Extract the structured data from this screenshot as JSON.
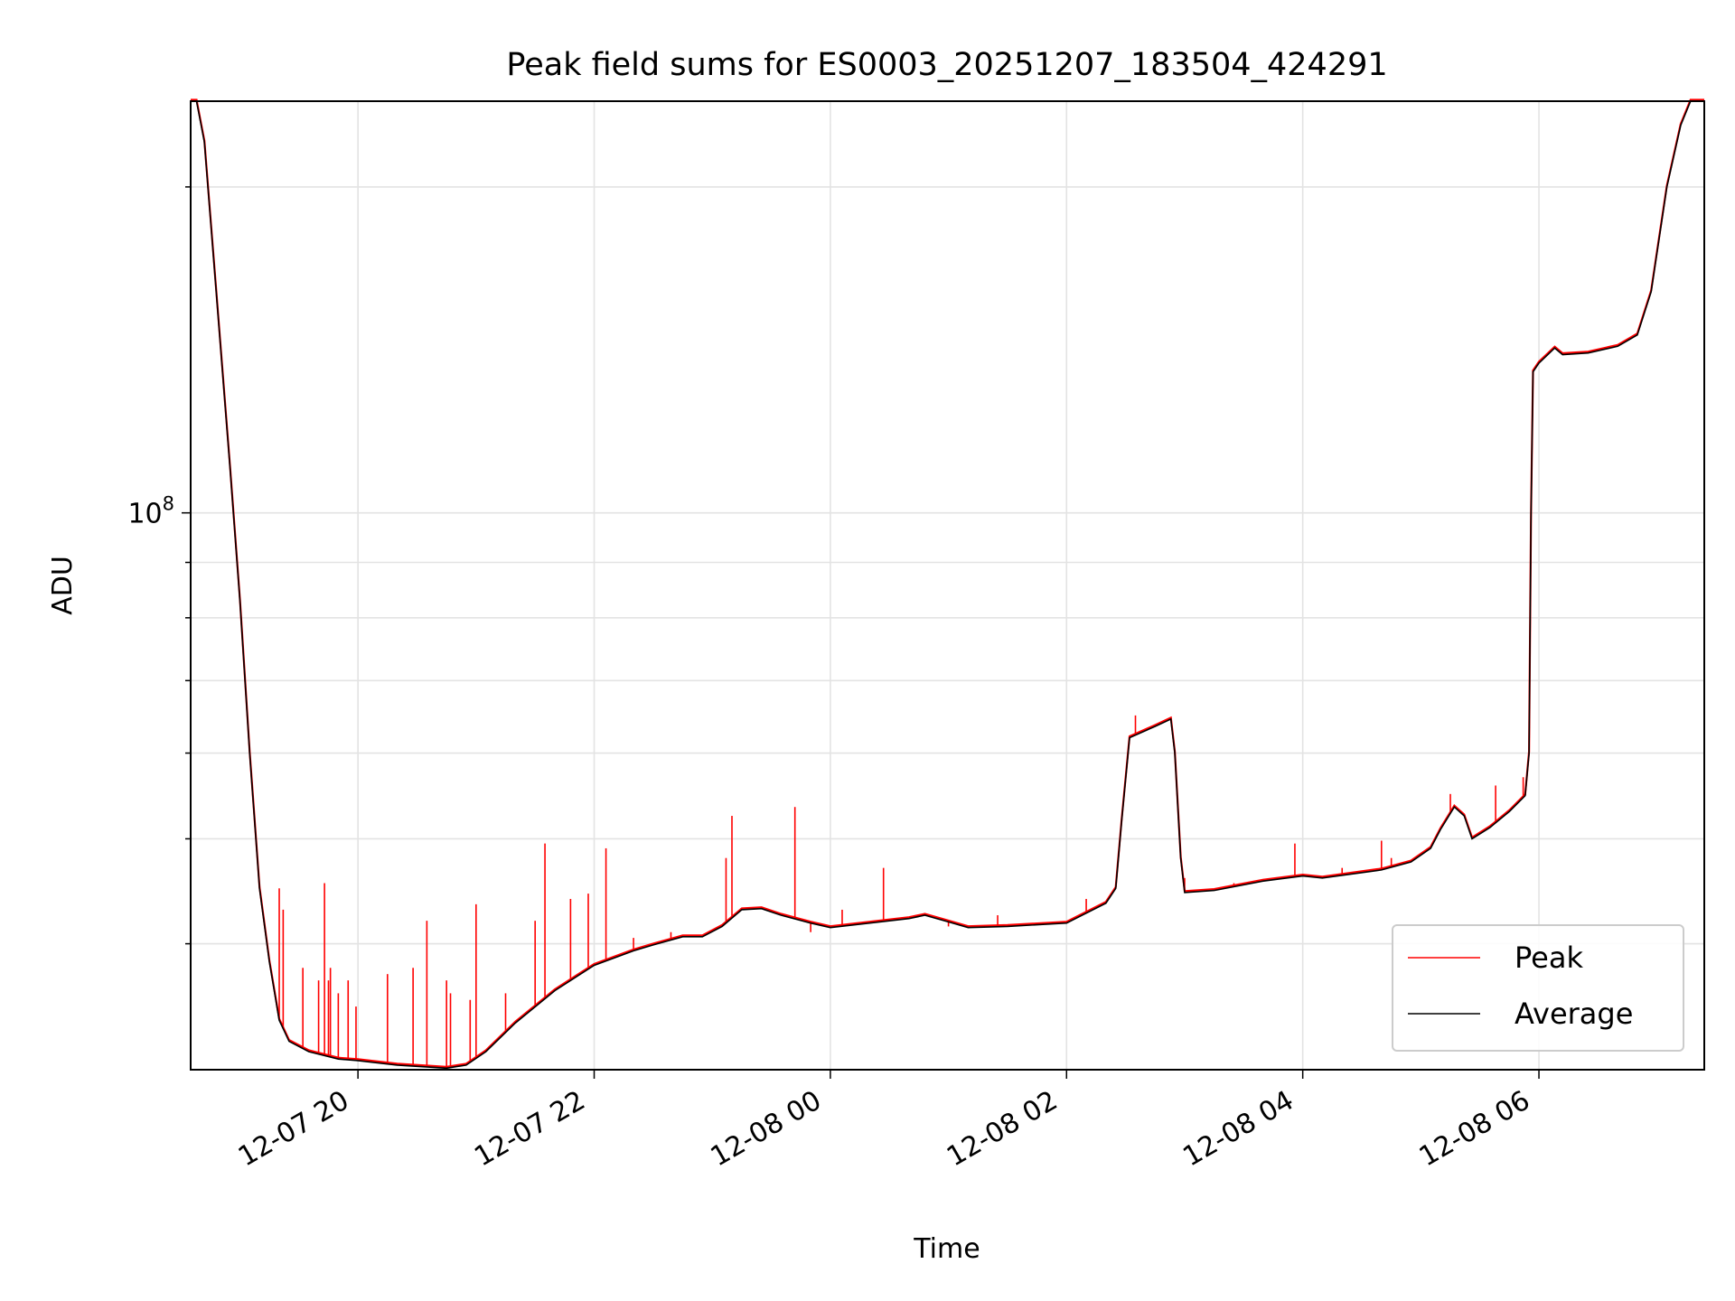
{
  "chart_data": {
    "type": "line",
    "title": "Peak field sums for ES0003_20251207_183504_424291",
    "xlabel": "Time",
    "ylabel": "ADU",
    "y_scale": "log",
    "ylim": [
      30600000,
      240000000
    ],
    "xlim": [
      "2025-12-07 18:35",
      "2025-12-08 07:24"
    ],
    "grid": true,
    "legend_position": "lower-right",
    "x_ticks": [
      {
        "t": "2025-12-07 20:00",
        "label": "12-07 20"
      },
      {
        "t": "2025-12-07 22:00",
        "label": "12-07 22"
      },
      {
        "t": "2025-12-08 00:00",
        "label": "12-08 00"
      },
      {
        "t": "2025-12-08 02:00",
        "label": "12-08 02"
      },
      {
        "t": "2025-12-08 04:00",
        "label": "12-08 04"
      },
      {
        "t": "2025-12-08 06:00",
        "label": "12-08 06"
      }
    ],
    "y_major_ticks": [
      {
        "v": 100000000,
        "base": "10",
        "exp": "8"
      }
    ],
    "y_minor_ticks": [
      40000000,
      50000000,
      60000000,
      70000000,
      80000000,
      90000000,
      200000000
    ],
    "series": [
      {
        "name": "Peak",
        "color": "#ff0000",
        "spikes": [
          [
            "2025-12-07 19:20",
            45000000
          ],
          [
            "2025-12-07 19:22",
            43000000
          ],
          [
            "2025-12-07 19:32",
            38000000
          ],
          [
            "2025-12-07 19:40",
            37000000
          ],
          [
            "2025-12-07 19:43",
            45500000
          ],
          [
            "2025-12-07 19:45",
            37000000
          ],
          [
            "2025-12-07 19:46",
            38000000
          ],
          [
            "2025-12-07 19:50",
            36000000
          ],
          [
            "2025-12-07 19:55",
            37000000
          ],
          [
            "2025-12-07 19:59",
            35000000
          ],
          [
            "2025-12-07 20:15",
            37500000
          ],
          [
            "2025-12-07 20:28",
            38000000
          ],
          [
            "2025-12-07 20:35",
            42000000
          ],
          [
            "2025-12-07 20:45",
            37000000
          ],
          [
            "2025-12-07 20:47",
            36000000
          ],
          [
            "2025-12-07 20:57",
            35500000
          ],
          [
            "2025-12-07 21:00",
            43500000
          ],
          [
            "2025-12-07 21:15",
            36000000
          ],
          [
            "2025-12-07 21:30",
            42000000
          ],
          [
            "2025-12-07 21:35",
            49500000
          ],
          [
            "2025-12-07 21:48",
            44000000
          ],
          [
            "2025-12-07 21:57",
            44500000
          ],
          [
            "2025-12-07 22:06",
            49000000
          ],
          [
            "2025-12-07 22:20",
            40500000
          ],
          [
            "2025-12-07 22:39",
            41000000
          ],
          [
            "2025-12-07 23:07",
            48000000
          ],
          [
            "2025-12-07 23:10",
            52500000
          ],
          [
            "2025-12-07 23:42",
            53500000
          ],
          [
            "2025-12-07 23:50",
            41000000
          ],
          [
            "2025-12-08 00:06",
            43000000
          ],
          [
            "2025-12-08 00:27",
            47000000
          ],
          [
            "2025-12-08 00:45",
            42500000
          ],
          [
            "2025-12-08 01:00",
            41500000
          ],
          [
            "2025-12-08 01:25",
            42500000
          ],
          [
            "2025-12-08 02:10",
            44000000
          ],
          [
            "2025-12-08 02:35",
            65000000
          ],
          [
            "2025-12-08 03:00",
            46000000
          ],
          [
            "2025-12-08 03:25",
            45500000
          ],
          [
            "2025-12-08 03:56",
            49500000
          ],
          [
            "2025-12-08 04:20",
            47000000
          ],
          [
            "2025-12-08 04:40",
            49800000
          ],
          [
            "2025-12-08 04:45",
            48000000
          ],
          [
            "2025-12-08 05:15",
            55000000
          ],
          [
            "2025-12-08 05:38",
            56000000
          ],
          [
            "2025-12-08 05:52",
            57000000
          ]
        ]
      },
      {
        "name": "Average",
        "color": "#000000",
        "points": [
          [
            "2025-12-07 18:35",
            240000000
          ],
          [
            "2025-12-07 18:38",
            240000000
          ],
          [
            "2025-12-07 18:42",
            220000000
          ],
          [
            "2025-12-07 18:48",
            160000000
          ],
          [
            "2025-12-07 18:55",
            110000000
          ],
          [
            "2025-12-07 19:00",
            83000000
          ],
          [
            "2025-12-07 19:05",
            60000000
          ],
          [
            "2025-12-07 19:10",
            45000000
          ],
          [
            "2025-12-07 19:15",
            38500000
          ],
          [
            "2025-12-07 19:20",
            34000000
          ],
          [
            "2025-12-07 19:25",
            32500000
          ],
          [
            "2025-12-07 19:35",
            31800000
          ],
          [
            "2025-12-07 19:50",
            31300000
          ],
          [
            "2025-12-07 20:00",
            31200000
          ],
          [
            "2025-12-07 20:20",
            30900000
          ],
          [
            "2025-12-07 20:45",
            30700000
          ],
          [
            "2025-12-07 20:55",
            30900000
          ],
          [
            "2025-12-07 21:05",
            31800000
          ],
          [
            "2025-12-07 21:20",
            33800000
          ],
          [
            "2025-12-07 21:40",
            36200000
          ],
          [
            "2025-12-07 22:00",
            38200000
          ],
          [
            "2025-12-07 22:20",
            39400000
          ],
          [
            "2025-12-07 22:30",
            39900000
          ],
          [
            "2025-12-07 22:45",
            40600000
          ],
          [
            "2025-12-07 22:55",
            40600000
          ],
          [
            "2025-12-07 23:05",
            41500000
          ],
          [
            "2025-12-07 23:15",
            43000000
          ],
          [
            "2025-12-07 23:25",
            43100000
          ],
          [
            "2025-12-07 23:35",
            42500000
          ],
          [
            "2025-12-07 23:50",
            41800000
          ],
          [
            "2025-12-08 00:00",
            41400000
          ],
          [
            "2025-12-08 00:20",
            41800000
          ],
          [
            "2025-12-08 00:40",
            42200000
          ],
          [
            "2025-12-08 00:48",
            42500000
          ],
          [
            "2025-12-08 01:00",
            41900000
          ],
          [
            "2025-12-08 01:10",
            41400000
          ],
          [
            "2025-12-08 01:30",
            41500000
          ],
          [
            "2025-12-08 02:00",
            41800000
          ],
          [
            "2025-12-08 02:20",
            43600000
          ],
          [
            "2025-12-08 02:25",
            45000000
          ],
          [
            "2025-12-08 02:28",
            52000000
          ],
          [
            "2025-12-08 02:32",
            62000000
          ],
          [
            "2025-12-08 02:45",
            63500000
          ],
          [
            "2025-12-08 02:53",
            64500000
          ],
          [
            "2025-12-08 02:55",
            60000000
          ],
          [
            "2025-12-08 02:58",
            48000000
          ],
          [
            "2025-12-08 03:00",
            44600000
          ],
          [
            "2025-12-08 03:15",
            44800000
          ],
          [
            "2025-12-08 03:40",
            45700000
          ],
          [
            "2025-12-08 04:00",
            46200000
          ],
          [
            "2025-12-08 04:10",
            46000000
          ],
          [
            "2025-12-08 04:40",
            46800000
          ],
          [
            "2025-12-08 04:55",
            47600000
          ],
          [
            "2025-12-08 05:05",
            49000000
          ],
          [
            "2025-12-08 05:10",
            51000000
          ],
          [
            "2025-12-08 05:17",
            53500000
          ],
          [
            "2025-12-08 05:22",
            52500000
          ],
          [
            "2025-12-08 05:26",
            50000000
          ],
          [
            "2025-12-08 05:35",
            51200000
          ],
          [
            "2025-12-08 05:45",
            53000000
          ],
          [
            "2025-12-08 05:53",
            54800000
          ],
          [
            "2025-12-08 05:55",
            60000000
          ],
          [
            "2025-12-08 05:56",
            100000000
          ],
          [
            "2025-12-08 05:57",
            135000000
          ],
          [
            "2025-12-08 06:00",
            137500000
          ],
          [
            "2025-12-08 06:08",
            142000000
          ],
          [
            "2025-12-08 06:12",
            140000000
          ],
          [
            "2025-12-08 06:25",
            140500000
          ],
          [
            "2025-12-08 06:40",
            142500000
          ],
          [
            "2025-12-08 06:50",
            146000000
          ],
          [
            "2025-12-08 06:57",
            160000000
          ],
          [
            "2025-12-08 07:05",
            200000000
          ],
          [
            "2025-12-08 07:12",
            228000000
          ],
          [
            "2025-12-08 07:17",
            240000000
          ],
          [
            "2025-12-08 07:24",
            240000000
          ]
        ]
      }
    ]
  }
}
